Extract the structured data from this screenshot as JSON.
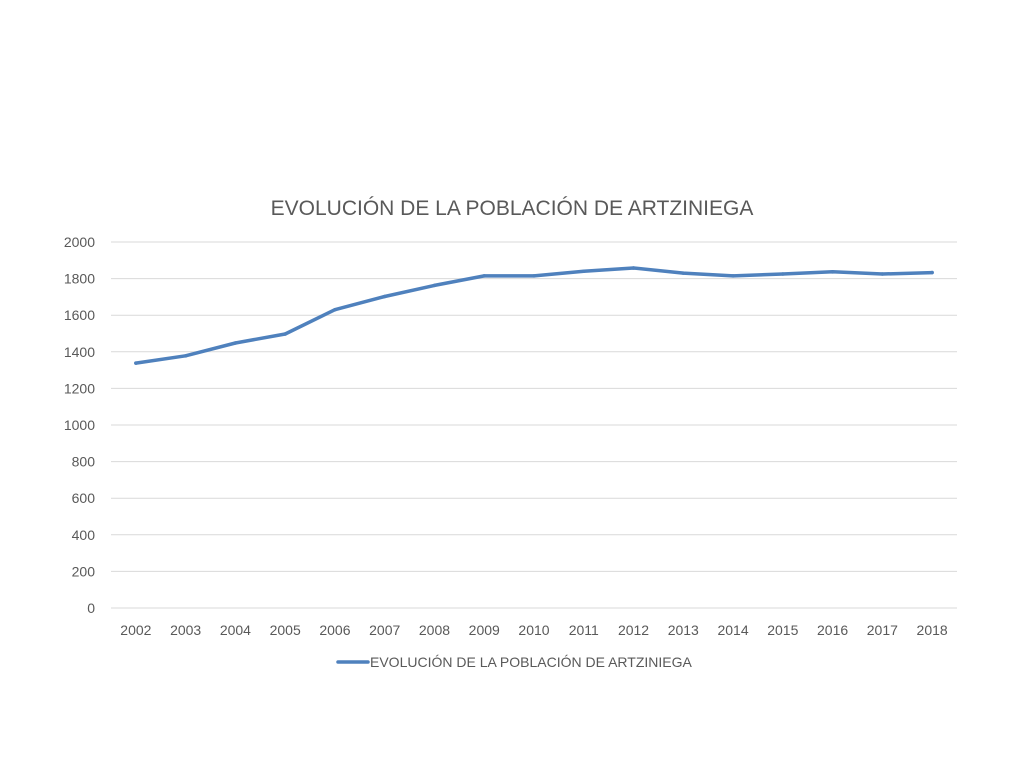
{
  "chart_data": {
    "type": "line",
    "title": "EVOLUCIÓN DE LA POBLACIÓN DE ARTZINIEGA",
    "xlabel": "",
    "ylabel": "",
    "categories": [
      "2002",
      "2003",
      "2004",
      "2005",
      "2006",
      "2007",
      "2008",
      "2009",
      "2010",
      "2011",
      "2012",
      "2013",
      "2014",
      "2015",
      "2016",
      "2017",
      "2018"
    ],
    "series": [
      {
        "name": "EVOLUCIÓN DE LA POBLACIÓN DE ARTZINIEGA",
        "values": [
          1338,
          1378,
          1448,
          1497,
          1630,
          1702,
          1763,
          1815,
          1815,
          1840,
          1858,
          1830,
          1815,
          1825,
          1837,
          1825,
          1833
        ]
      }
    ],
    "ylim": [
      0,
      2000
    ],
    "yticks": [
      0,
      200,
      400,
      600,
      800,
      1000,
      1200,
      1400,
      1600,
      1800,
      2000
    ],
    "grid": true,
    "legend_position": "bottom",
    "colors": {
      "series": "#4f81bd",
      "text": "#595959",
      "grid": "#d9d9d9"
    }
  }
}
